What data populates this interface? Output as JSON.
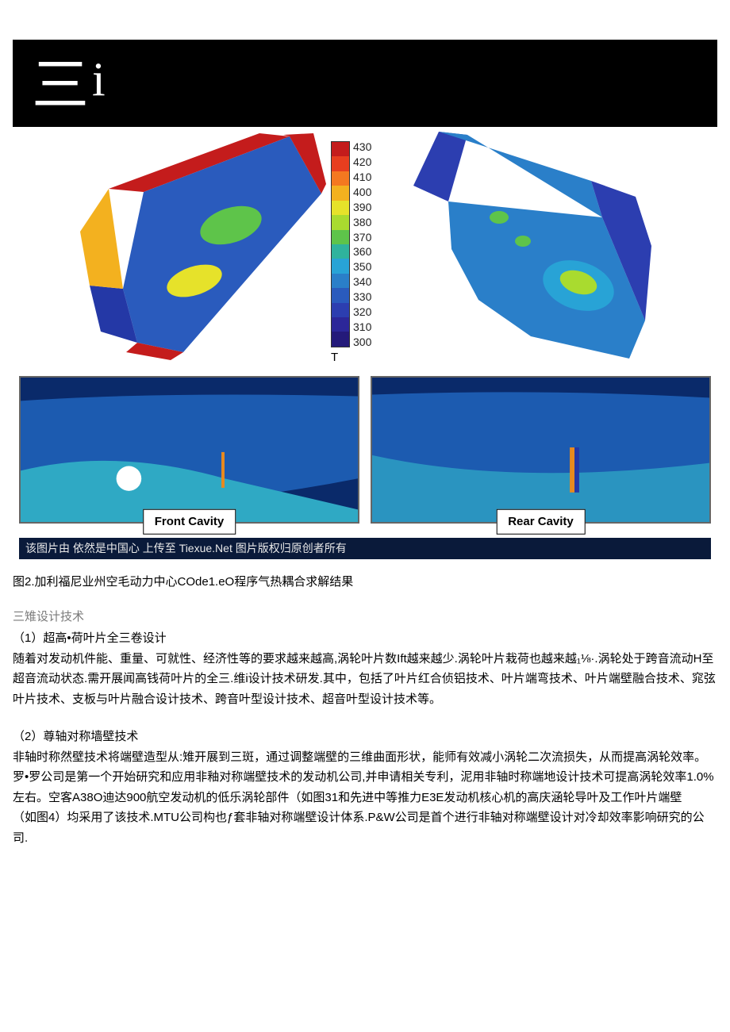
{
  "header": {
    "cn": "三",
    "i": "i"
  },
  "figure": {
    "colorbar": {
      "unit": "T",
      "ticks": [
        "430",
        "420",
        "410",
        "400",
        "390",
        "380",
        "370",
        "360",
        "350",
        "340",
        "330",
        "320",
        "310",
        "300"
      ],
      "colors": [
        "#c41c1c",
        "#e73e1f",
        "#f47820",
        "#f3b11f",
        "#e6e22a",
        "#a9db2f",
        "#5ec44a",
        "#2fb39d",
        "#28a3d6",
        "#2a7fc9",
        "#2a5bbd",
        "#2c3eb0",
        "#2c2799",
        "#241a7a"
      ],
      "bg": "#ffffff",
      "border": "#333333",
      "tick_fontsize": 14,
      "unit_fontsize": 14
    },
    "blade_left": {
      "fill_cold": "#2a5bbd",
      "fill_colder": "#2438a6",
      "fill_hot": "#e6e22a",
      "fill_mid": "#5ec44a",
      "edge_red": "#c41c1c",
      "edge_yellow": "#f3b11f"
    },
    "blade_right": {
      "fill_cold": "#2a7fc9",
      "fill_colder": "#2c3eb0",
      "fill_mid": "#5ec44a",
      "fill_mid2": "#28a3d6",
      "fill_hot": "#a9db2f"
    },
    "cavity_front": {
      "label": "Front Cavity",
      "bg_top": "#0a2a6a",
      "bg_mid": "#1c5bb0",
      "bg_low": "#2fa9c4",
      "hole": "#ffffff"
    },
    "cavity_rear": {
      "label": "Rear Cavity",
      "bg_top": "#0a2a6a",
      "bg_mid": "#1c5bb0",
      "bg_low": "#2a94c0",
      "bar_orange": "#e78a1f",
      "bar_blue": "#2438a6"
    },
    "credit": "该图片由 依然是中国心 上传至 Tiexue.Net 图片版权归原创者所有"
  },
  "caption": "图2.加利福尼业州空毛动力中心COde1.eO程序气热耦合求解结果",
  "section1": {
    "title": "三雉设计技术",
    "sub": "（1）超高•荷叶片全三卷设计",
    "body": "随着对发动机件能、重量、可就性、经济性等的要求越来越高,涡轮叶片数Ift越来越少.涡轮叶片栽荷也越来越₁⅛·.涡轮处于跨音流动H至超音流动状态.需开展闻高钱荷叶片的全三.维i设计技术研发.其中，包括了叶片红合侦铝技术、叶片端弯技术、叶片端壁融合技术、窕弦叶片技术、支板与叶片融合设计技术、跨音叶型设计技术、超音叶型设计技术等。"
  },
  "section2": {
    "sub": "（2）尊轴对称墙壁技术",
    "body": "非轴时称然壁技术将端壁造型从:雉开展到三斑，通过调整端壁的三维曲面形状，能师有效减小涡轮二次流损失，从而提高涡轮效率。罗•罗公司是第一个开始研究和应用非釉对称端壁技术的发动机公司,并申请相关专利，泥用非轴时称端地设计技术可提高涡轮效率1.0%左右。空客A38O迪达900航空发动机的低乐涡轮部件（如图31和先进中等推力E3E发动机核心机的高庆涵轮导叶及工作叶片端壁",
    "body2": "（如图4）均采用了该技术.MTU公司构也ƒ套非轴对称端壁设计体系.P&W公司是首个进行非轴对称端壁设计对冷却效率影响研究的公司."
  }
}
